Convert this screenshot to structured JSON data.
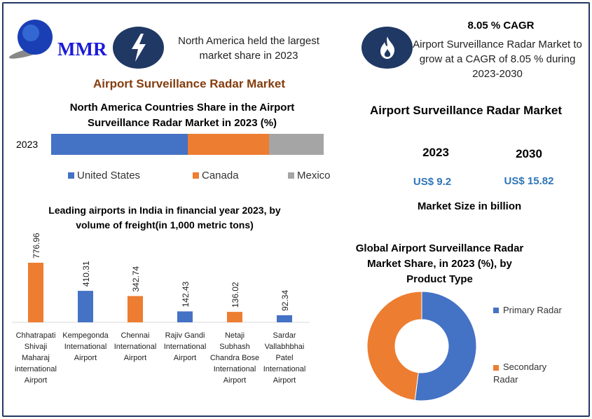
{
  "logo": {
    "text": "MMR"
  },
  "highlights": {
    "region_text": "North America held the largest market share in 2023",
    "cagr_title": "8.05 % CAGR",
    "cagr_text": "Airport Surveillance Radar Market to grow at a CAGR of 8.05 % during 2023-2030",
    "icons": [
      "lightning-icon",
      "flame-icon"
    ]
  },
  "main_title": "Airport Surveillance Radar Market",
  "market_size": {
    "title": "Airport Surveillance Radar Market",
    "years": [
      "2023",
      "2030"
    ],
    "values": [
      "US$ 9.2",
      "US$ 15.82"
    ],
    "caption": "Market Size in billion"
  },
  "colors": {
    "blue": "#4472c4",
    "orange": "#ed7d31",
    "gray": "#a5a5a5",
    "navy": "#203864",
    "brown": "#843c0c",
    "value_blue": "#2e75b6"
  },
  "chart_data": [
    {
      "type": "bar",
      "stacked": true,
      "orientation": "horizontal",
      "title": "North America Countries Share in the  Airport Surveillance Radar Market  in 2023 (%)",
      "categories": [
        "2023"
      ],
      "series": [
        {
          "name": "United States",
          "values": [
            50
          ]
        },
        {
          "name": "Canada",
          "values": [
            30
          ]
        },
        {
          "name": "Mexico",
          "values": [
            20
          ]
        }
      ],
      "legend": "bottom"
    },
    {
      "type": "bar",
      "title": "Leading airports in India in financial year 2023, by volume of freight(in 1,000 metric tons)",
      "categories": [
        "Chhatrapati Shivaji Maharaj international Airport",
        "Kempegonda International Airport",
        "Chennai International Airport",
        "Rajiv Gandi International Airport",
        "Netaji Subhash Chandra Bose International Airport",
        "Sardar Vallabhbhai Patel International Airport"
      ],
      "values": [
        776.96,
        410.31,
        342.74,
        142.43,
        136.02,
        92.34
      ],
      "labels": [
        "776.96",
        "410.31",
        "342.74",
        "142.43",
        "136.02",
        "92.34"
      ]
    },
    {
      "type": "pie",
      "donut": true,
      "title": "Global Airport Surveillance Radar Market  Share, in 2023 (%), by Product Type",
      "categories": [
        "Primary Radar",
        "Secondary Radar"
      ],
      "values": [
        52,
        48
      ],
      "legend": "right"
    }
  ]
}
